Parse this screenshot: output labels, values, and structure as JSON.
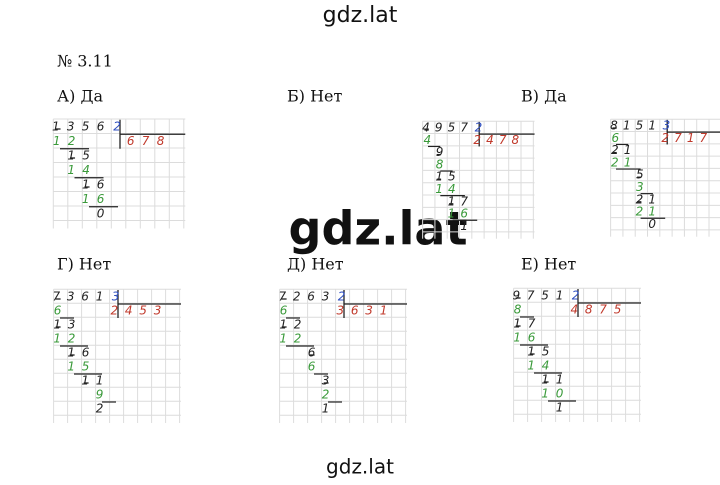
{
  "header": {
    "watermark": "gdz.lat",
    "title": "№ 3.11"
  },
  "overlay": {
    "watermark": "gdz.lat"
  },
  "footer": {
    "watermark": "gdz.lat"
  },
  "sections": [
    {
      "label": "А) Да",
      "dividend": "1356",
      "divisor": "2",
      "quotient": "678",
      "steps": [
        "12",
        "15",
        "14",
        "16",
        "16",
        "0"
      ]
    },
    {
      "label": "Б) Нет",
      "dividend": "4957",
      "divisor": "2",
      "quotient": "2478",
      "steps": [
        "4",
        "9",
        "8",
        "15",
        "14",
        "17",
        "16",
        "1"
      ]
    },
    {
      "label": "В) Да",
      "dividend": "8151",
      "divisor": "3",
      "quotient": "2717",
      "steps": [
        "6",
        "21",
        "21",
        "5",
        "3",
        "21",
        "21",
        "0"
      ]
    },
    {
      "label": "Г) Нет",
      "dividend": "7361",
      "divisor": "3",
      "quotient": "2453",
      "steps": [
        "6",
        "13",
        "12",
        "16",
        "15",
        "11",
        "9",
        "2"
      ]
    },
    {
      "label": "Д) Нет",
      "dividend": "7263",
      "divisor": "2",
      "quotient": "3631",
      "steps": [
        "6",
        "12",
        "12",
        "6",
        "6",
        "3",
        "2",
        "1"
      ]
    },
    {
      "label": "Е) Нет",
      "dividend": "9751",
      "divisor": "2",
      "quotient": "4875",
      "steps": [
        "8",
        "17",
        "16",
        "15",
        "14",
        "11",
        "10",
        "1"
      ]
    }
  ]
}
